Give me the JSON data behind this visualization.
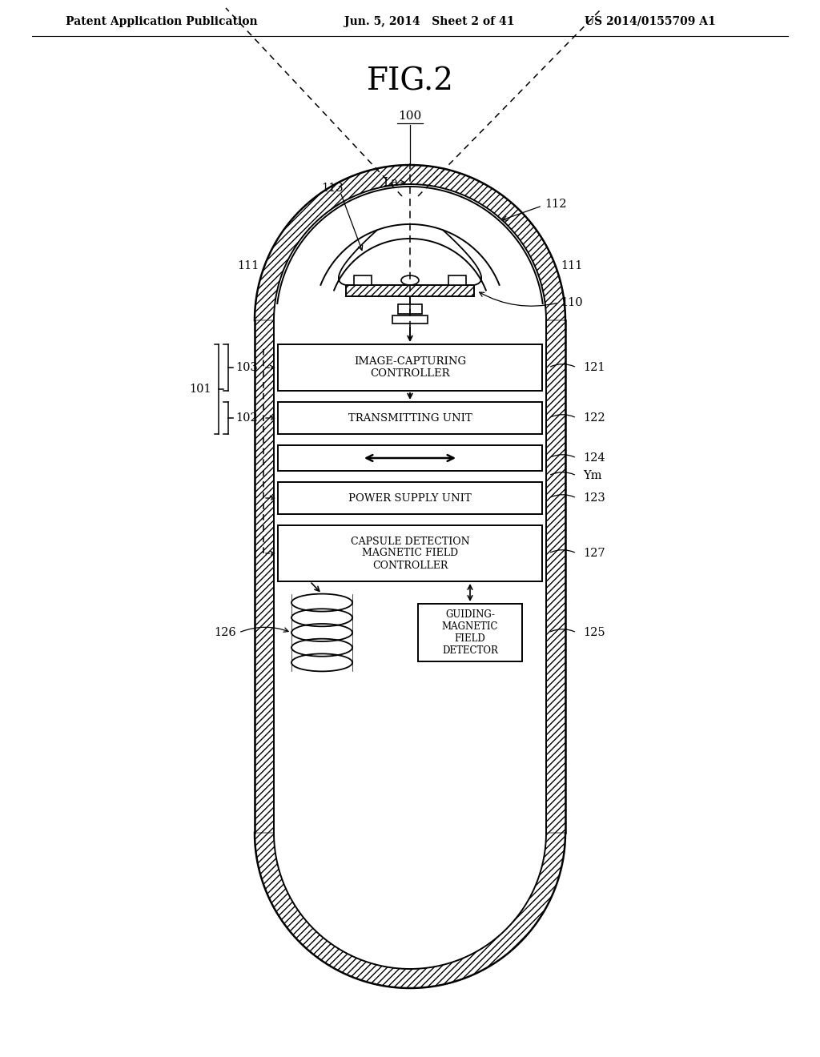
{
  "bg_color": "#ffffff",
  "header_left": "Patent Application Publication",
  "header_mid": "Jun. 5, 2014   Sheet 2 of 41",
  "header_right": "US 2014/0155709 A1",
  "fig_title": "FIG.2",
  "label_100": "100",
  "label_La": "La",
  "label_113": "113",
  "label_112": "112",
  "label_111_left": "111",
  "label_111_right": "111",
  "label_110": "110",
  "label_121": "121",
  "label_122": "122",
  "label_124": "124",
  "label_Ym": "Ym",
  "label_123": "123",
  "label_127": "127",
  "label_125": "125",
  "label_126": "126",
  "label_101": "101",
  "label_103": "103",
  "label_102": "102",
  "box_121_text": "IMAGE-CAPTURING\nCONTROLLER",
  "box_122_text": "TRANSMITTING UNIT",
  "box_123_text": "POWER SUPPLY UNIT",
  "box_124_text": "double_arrow",
  "box_127_text": "CAPSULE DETECTION\nMAGNETIC FIELD\nCONTROLLER",
  "box_125_text": "GUIDING-\nMAGNETIC\nFIELD\nDETECTOR"
}
